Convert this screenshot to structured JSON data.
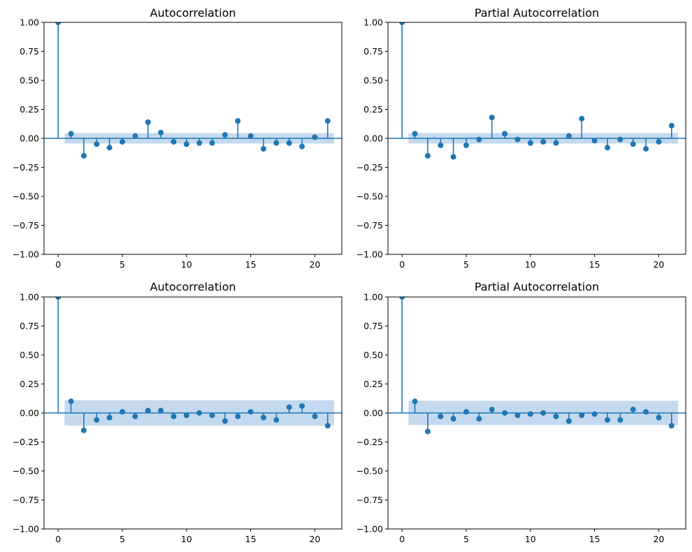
{
  "chart_data": [
    {
      "type": "stem",
      "title": "Autocorrelation",
      "xlabel": "",
      "ylabel": "",
      "xlim": [
        -1.1,
        22.1
      ],
      "ylim": [
        -1.0,
        1.0
      ],
      "xticks": [
        "0",
        "5",
        "10",
        "15",
        "20"
      ],
      "yticks": [
        "1.00",
        "0.75",
        "0.50",
        "0.25",
        "0.00",
        "−0.25",
        "−0.50",
        "−0.75",
        "−1.00"
      ],
      "lags": [
        0,
        1,
        2,
        3,
        4,
        5,
        6,
        7,
        8,
        9,
        10,
        11,
        12,
        13,
        14,
        15,
        16,
        17,
        18,
        19,
        20,
        21
      ],
      "values": [
        1.0,
        0.04,
        -0.15,
        -0.05,
        -0.08,
        -0.03,
        0.02,
        0.14,
        0.05,
        -0.03,
        -0.05,
        -0.04,
        -0.04,
        0.03,
        0.15,
        0.02,
        -0.09,
        -0.04,
        -0.04,
        -0.07,
        0.01,
        0.15
      ],
      "confidence_band": {
        "from_lag": 0.5,
        "to_lag": 21.5,
        "lower": -0.045,
        "upper": 0.045
      },
      "color": "#1f77b4",
      "band_color": "#c5d9ee"
    },
    {
      "type": "stem",
      "title": "Partial Autocorrelation",
      "xlabel": "",
      "ylabel": "",
      "xlim": [
        -1.1,
        22.1
      ],
      "ylim": [
        -1.0,
        1.0
      ],
      "xticks": [
        "0",
        "5",
        "10",
        "15",
        "20"
      ],
      "yticks": [
        "1.00",
        "0.75",
        "0.50",
        "0.25",
        "0.00",
        "−0.25",
        "−0.50",
        "−0.75",
        "−1.00"
      ],
      "lags": [
        0,
        1,
        2,
        3,
        4,
        5,
        6,
        7,
        8,
        9,
        10,
        11,
        12,
        13,
        14,
        15,
        16,
        17,
        18,
        19,
        20,
        21
      ],
      "values": [
        1.0,
        0.04,
        -0.15,
        -0.06,
        -0.16,
        -0.06,
        -0.01,
        0.18,
        0.04,
        -0.01,
        -0.04,
        -0.03,
        -0.04,
        0.02,
        0.17,
        -0.02,
        -0.08,
        -0.01,
        -0.05,
        -0.09,
        -0.03,
        0.11
      ],
      "confidence_band": {
        "from_lag": 0.5,
        "to_lag": 21.5,
        "lower": -0.045,
        "upper": 0.045
      },
      "color": "#1f77b4",
      "band_color": "#c5d9ee"
    },
    {
      "type": "stem",
      "title": "Autocorrelation",
      "xlabel": "",
      "ylabel": "",
      "xlim": [
        -1.1,
        22.1
      ],
      "ylim": [
        -1.0,
        1.0
      ],
      "xticks": [
        "0",
        "5",
        "10",
        "15",
        "20"
      ],
      "yticks": [
        "1.00",
        "0.75",
        "0.50",
        "0.25",
        "0.00",
        "−0.25",
        "−0.50",
        "−0.75",
        "−1.00"
      ],
      "lags": [
        0,
        1,
        2,
        3,
        4,
        5,
        6,
        7,
        8,
        9,
        10,
        11,
        12,
        13,
        14,
        15,
        16,
        17,
        18,
        19,
        20,
        21
      ],
      "values": [
        1.0,
        0.1,
        -0.15,
        -0.06,
        -0.04,
        0.01,
        -0.03,
        0.02,
        0.02,
        -0.03,
        -0.02,
        0.0,
        -0.02,
        -0.07,
        -0.03,
        0.01,
        -0.04,
        -0.06,
        0.05,
        0.06,
        -0.03,
        -0.11
      ],
      "confidence_band": {
        "from_lag": 0.5,
        "to_lag": 21.5,
        "lower": -0.11,
        "upper": 0.11
      },
      "color": "#1f77b4",
      "band_color": "#c5d9ee"
    },
    {
      "type": "stem",
      "title": "Partial Autocorrelation",
      "xlabel": "",
      "ylabel": "",
      "xlim": [
        -1.1,
        22.1
      ],
      "ylim": [
        -1.0,
        1.0
      ],
      "xticks": [
        "0",
        "5",
        "10",
        "15",
        "20"
      ],
      "yticks": [
        "1.00",
        "0.75",
        "0.50",
        "0.25",
        "0.00",
        "−0.25",
        "−0.50",
        "−0.75",
        "−1.00"
      ],
      "lags": [
        0,
        1,
        2,
        3,
        4,
        5,
        6,
        7,
        8,
        9,
        10,
        11,
        12,
        13,
        14,
        15,
        16,
        17,
        18,
        19,
        20,
        21
      ],
      "values": [
        1.0,
        0.1,
        -0.16,
        -0.03,
        -0.05,
        0.01,
        -0.05,
        0.03,
        0.0,
        -0.02,
        -0.01,
        0.0,
        -0.03,
        -0.07,
        -0.02,
        -0.01,
        -0.06,
        -0.06,
        0.03,
        0.01,
        -0.04,
        -0.11
      ],
      "confidence_band": {
        "from_lag": 0.5,
        "to_lag": 21.5,
        "lower": -0.105,
        "upper": 0.105
      },
      "color": "#1f77b4",
      "band_color": "#c5d9ee"
    }
  ]
}
